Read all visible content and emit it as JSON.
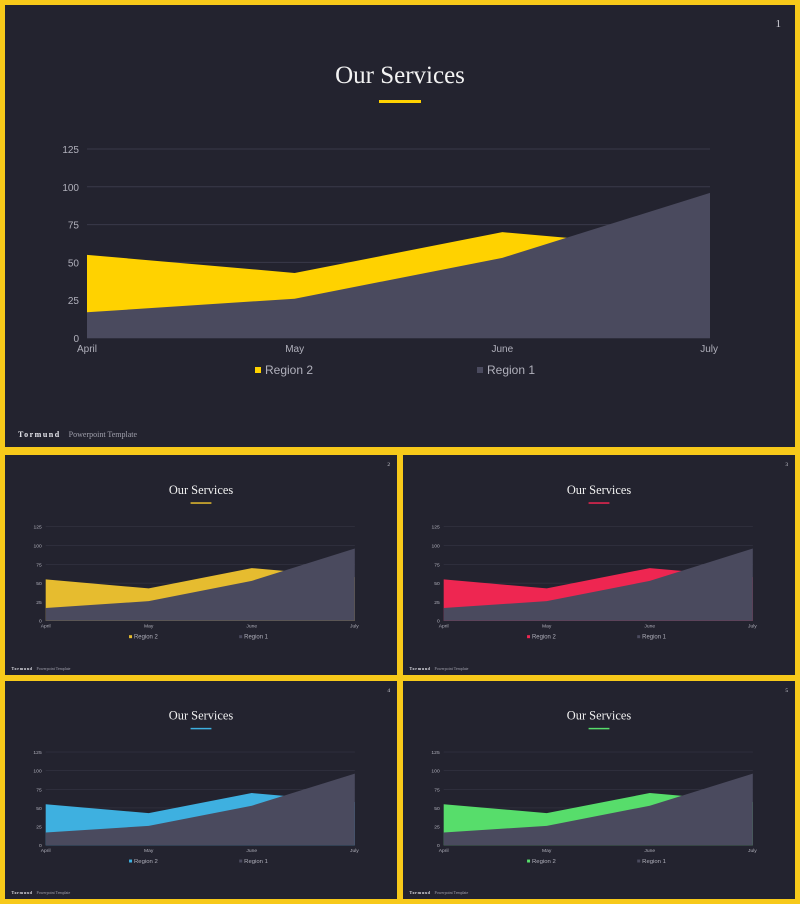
{
  "title": "Our Services",
  "footer": {
    "brand": "Tormund",
    "subtitle": "Powerpoint Template"
  },
  "colors": {
    "background": "#23232f",
    "border": "#f7c91a",
    "region1": "#4a4a5e",
    "grid": "#3a3a4a",
    "axis_text": "#b0b0bb",
    "title_text": "#f2f2f2"
  },
  "slides": [
    {
      "number": "1",
      "accent": "#ffd200"
    },
    {
      "number": "2",
      "accent": "#e6bc2f"
    },
    {
      "number": "3",
      "accent": "#ee2651"
    },
    {
      "number": "4",
      "accent": "#3eb0e0"
    },
    {
      "number": "5",
      "accent": "#57dd6b"
    }
  ],
  "chart_data": {
    "type": "area",
    "categories": [
      "April",
      "May",
      "June",
      "July"
    ],
    "series": [
      {
        "name": "Region 2",
        "values": [
          55,
          43,
          70,
          58
        ]
      },
      {
        "name": "Region 1",
        "values": [
          17,
          26,
          53,
          96
        ]
      }
    ],
    "ylim": [
      0,
      125
    ],
    "yticks": [
      0,
      25,
      50,
      75,
      100,
      125
    ],
    "grid": true,
    "legend": "bottom"
  }
}
